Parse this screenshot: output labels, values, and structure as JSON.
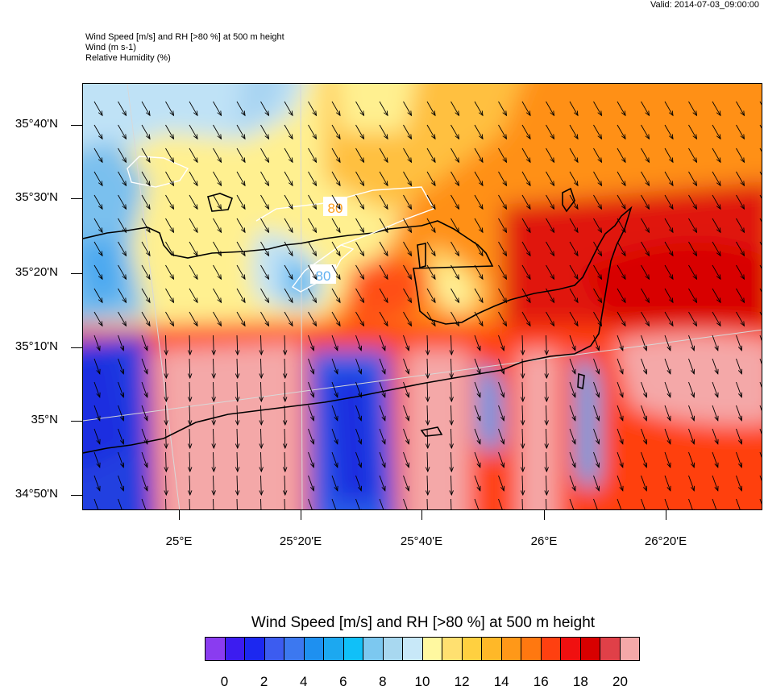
{
  "valid_time": "Valid: 2014-07-03_09:00:00",
  "header": {
    "line1": "Wind Speed [m/s] and RH [>80 %] at 500 m height",
    "line2": "Wind   (m s-1)",
    "line3": "Relative Humidity   (%)"
  },
  "map": {
    "lat_labels": [
      "35°40'N",
      "35°30'N",
      "35°20'N",
      "35°10'N",
      "35°N",
      "34°50'N"
    ],
    "lon_labels": [
      "25°E",
      "25°20'E",
      "25°40'E",
      "26°E",
      "26°20'E"
    ],
    "rh_contour_labels": [
      "80",
      "80"
    ],
    "wind_direction": "north-northwest",
    "colors": {
      "coastline": "#000000",
      "rh_contour": "#ffffff",
      "gridline": "#d8d8d8",
      "wind_arrow": "#000000"
    }
  },
  "colorbar": {
    "title": "Wind Speed [m/s] and RH [>80 %] at 500 m height",
    "tick_labels": [
      "0",
      "2",
      "4",
      "6",
      "8",
      "10",
      "12",
      "14",
      "16",
      "18",
      "20"
    ],
    "colors": [
      "#8a3cf0",
      "#3c1cf0",
      "#1c28f0",
      "#3c5cf0",
      "#3c78f0",
      "#1e90f0",
      "#1ca8f0",
      "#10c0f8",
      "#7cc8f0",
      "#a8d8f0",
      "#c8e8f8",
      "#fff8a0",
      "#ffe070",
      "#ffd040",
      "#ffb828",
      "#ff9818",
      "#ff7810",
      "#ff4010",
      "#f01010",
      "#d80000",
      "#e04048",
      "#f4a8a8"
    ]
  }
}
